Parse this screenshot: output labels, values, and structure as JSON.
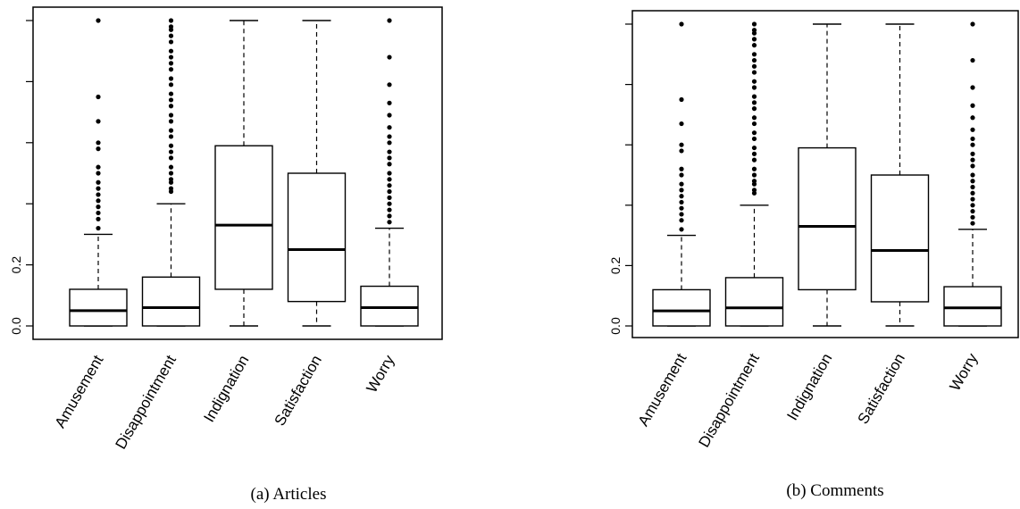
{
  "chart_data": [
    {
      "type": "boxplot",
      "caption": "(a) Articles",
      "categories": [
        "Amusement",
        "Disappointment",
        "Indignation",
        "Satisfaction",
        "Worry"
      ],
      "ylim": [
        0.0,
        1.0
      ],
      "yticks": [
        0.0,
        0.2,
        0.4,
        0.6,
        0.8,
        1.0
      ],
      "ytick_labels": [
        "0.0",
        "0.2",
        "",
        "",
        "",
        ""
      ],
      "grid": false,
      "boxes": [
        {
          "min": 0.0,
          "q1": 0.0,
          "median": 0.05,
          "q3": 0.12,
          "max": 0.3,
          "outliers": [
            0.32,
            0.35,
            0.37,
            0.39,
            0.41,
            0.43,
            0.45,
            0.47,
            0.5,
            0.52,
            0.58,
            0.6,
            0.67,
            0.75,
            1.0
          ]
        },
        {
          "min": 0.0,
          "q1": 0.0,
          "median": 0.06,
          "q3": 0.16,
          "max": 0.4,
          "outliers": [
            0.44,
            0.45,
            0.47,
            0.48,
            0.5,
            0.52,
            0.55,
            0.57,
            0.59,
            0.62,
            0.64,
            0.67,
            0.69,
            0.72,
            0.74,
            0.76,
            0.79,
            0.81,
            0.84,
            0.86,
            0.88,
            0.9,
            0.93,
            0.95,
            0.97,
            0.98,
            1.0
          ]
        },
        {
          "min": 0.0,
          "q1": 0.12,
          "median": 0.33,
          "q3": 0.59,
          "max": 1.0,
          "outliers": []
        },
        {
          "min": 0.0,
          "q1": 0.08,
          "median": 0.25,
          "q3": 0.5,
          "max": 1.0,
          "outliers": []
        },
        {
          "min": 0.0,
          "q1": 0.0,
          "median": 0.06,
          "q3": 0.13,
          "max": 0.32,
          "outliers": [
            0.34,
            0.36,
            0.38,
            0.4,
            0.42,
            0.44,
            0.46,
            0.48,
            0.5,
            0.53,
            0.55,
            0.57,
            0.6,
            0.62,
            0.65,
            0.69,
            0.73,
            0.79,
            0.88,
            1.0
          ]
        }
      ]
    },
    {
      "type": "boxplot",
      "caption": "(b) Comments",
      "categories": [
        "Amusement",
        "Disappointment",
        "Indignation",
        "Satisfaction",
        "Worry"
      ],
      "ylim": [
        0.0,
        1.0
      ],
      "yticks": [
        0.0,
        0.2,
        0.4,
        0.6,
        0.8,
        1.0
      ],
      "ytick_labels": [
        "0.0",
        "0.2",
        "",
        "",
        "",
        ""
      ],
      "grid": false,
      "boxes": [
        {
          "min": 0.0,
          "q1": 0.0,
          "median": 0.05,
          "q3": 0.12,
          "max": 0.3,
          "outliers": [
            0.32,
            0.35,
            0.37,
            0.39,
            0.41,
            0.43,
            0.45,
            0.47,
            0.5,
            0.52,
            0.58,
            0.6,
            0.67,
            0.75,
            1.0
          ]
        },
        {
          "min": 0.0,
          "q1": 0.0,
          "median": 0.06,
          "q3": 0.16,
          "max": 0.4,
          "outliers": [
            0.44,
            0.45,
            0.47,
            0.48,
            0.5,
            0.52,
            0.55,
            0.57,
            0.59,
            0.62,
            0.64,
            0.67,
            0.69,
            0.72,
            0.74,
            0.76,
            0.79,
            0.81,
            0.84,
            0.86,
            0.88,
            0.9,
            0.93,
            0.95,
            0.97,
            0.98,
            1.0
          ]
        },
        {
          "min": 0.0,
          "q1": 0.12,
          "median": 0.33,
          "q3": 0.59,
          "max": 1.0,
          "outliers": []
        },
        {
          "min": 0.0,
          "q1": 0.08,
          "median": 0.25,
          "q3": 0.5,
          "max": 1.0,
          "outliers": []
        },
        {
          "min": 0.0,
          "q1": 0.0,
          "median": 0.06,
          "q3": 0.13,
          "max": 0.32,
          "outliers": [
            0.34,
            0.36,
            0.38,
            0.4,
            0.42,
            0.44,
            0.46,
            0.48,
            0.5,
            0.53,
            0.55,
            0.57,
            0.6,
            0.62,
            0.65,
            0.69,
            0.73,
            0.79,
            0.88,
            1.0
          ]
        }
      ]
    }
  ]
}
